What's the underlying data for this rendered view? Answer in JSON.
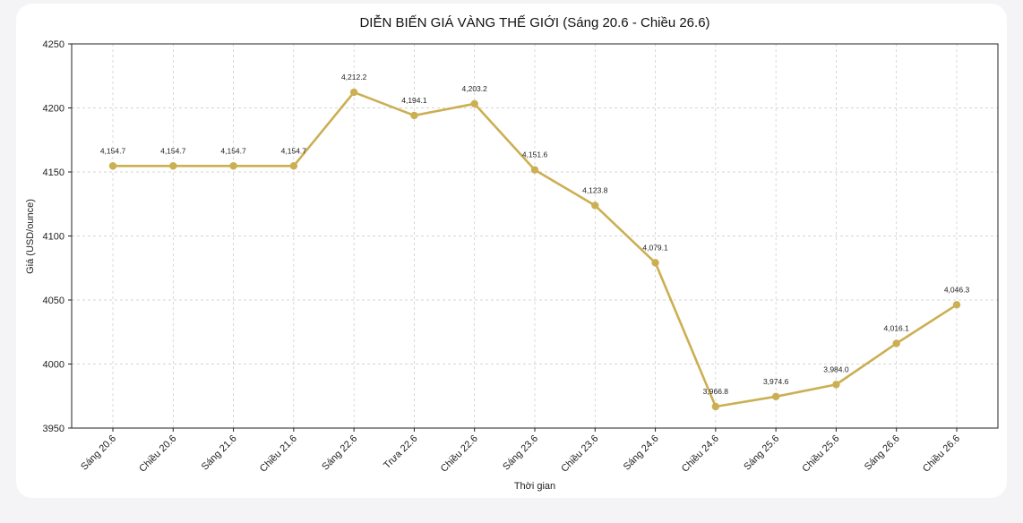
{
  "chart_data": {
    "type": "line",
    "title": "DIỄN BIẾN GIÁ VÀNG THẾ GIỚI (Sáng 20.6 - Chiều 26.6)",
    "xlabel": "Thời gian",
    "ylabel": "Giá (USD/ounce)",
    "ylim": [
      3950,
      4250
    ],
    "yticks": [
      3950,
      4000,
      4050,
      4100,
      4150,
      4200,
      4250
    ],
    "grid": true,
    "line_color": "#ccaf53",
    "categories": [
      "Sáng 20.6",
      "Chiều 20.6",
      "Sáng 21.6",
      "Chiều 21.6",
      "Sáng 22.6",
      "Trưa 22.6",
      "Chiều 22.6",
      "Sáng 23.6",
      "Chiều 23.6",
      "Sáng 24.6",
      "Chiều 24.6",
      "Sáng 25.6",
      "Chiều 25.6",
      "Sáng 26.6",
      "Chiều 26.6"
    ],
    "series": [
      {
        "values": [
          4154.7,
          4154.7,
          4154.7,
          4154.7,
          4212.2,
          4194.1,
          4203.2,
          4151.6,
          4123.8,
          4079.1,
          3966.8,
          3974.6,
          3984.0,
          4016.1,
          4046.3
        ],
        "labels": [
          "4,154.7",
          "4,154.7",
          "4,154.7",
          "4,154.7",
          "4,212.2",
          "4,194.1",
          "4,203.2",
          "4,151.6",
          "4,123.8",
          "4,079.1",
          "3,966.8",
          "3,974.6",
          "3,984.0",
          "4,016.1",
          "4,046.3"
        ]
      }
    ]
  }
}
